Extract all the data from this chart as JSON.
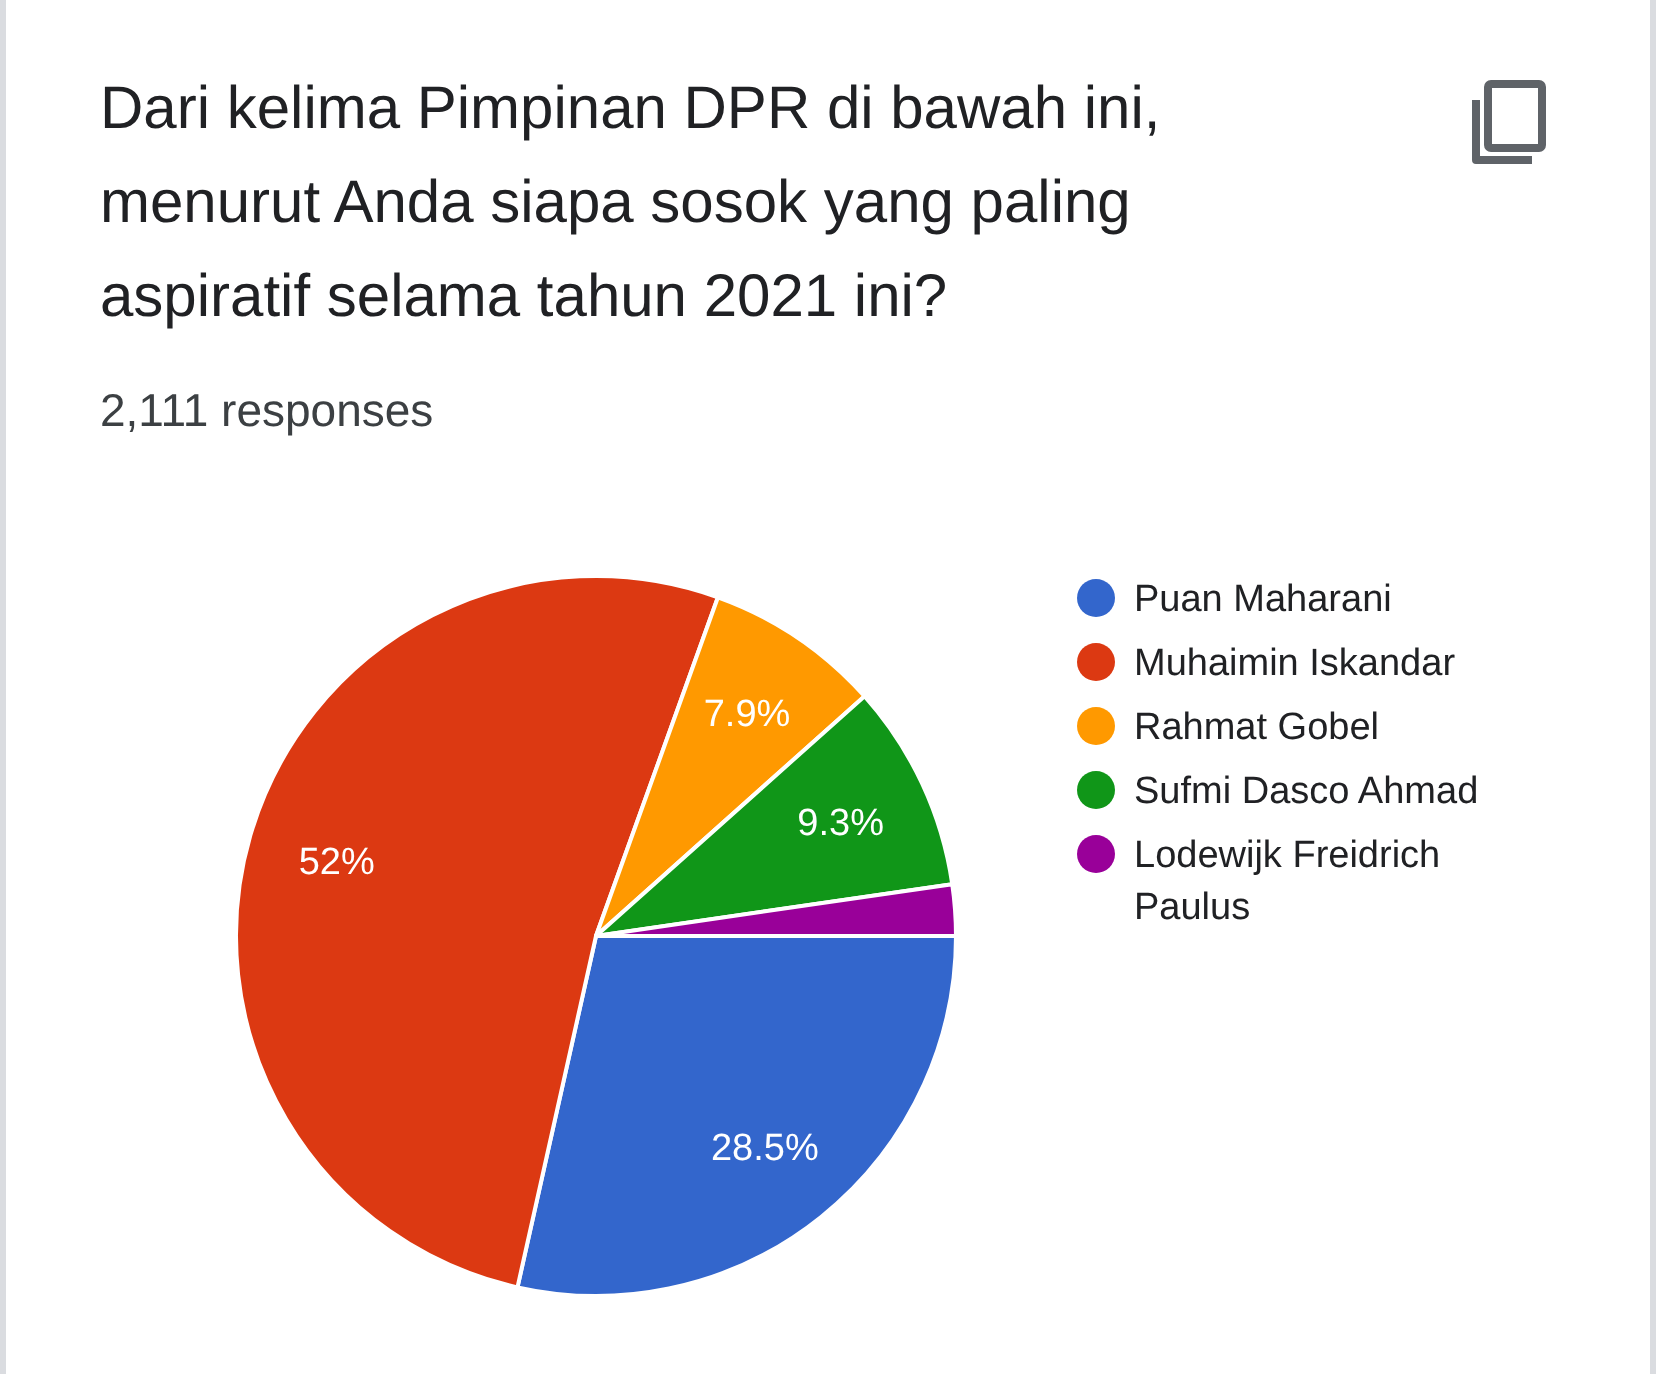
{
  "chart_data": {
    "type": "pie",
    "title": "Dari kelima Pimpinan DPR di bawah ini, menurut Anda siapa sosok yang paling aspiratif selama tahun 2021 ini?",
    "subtitle": "2,111 responses",
    "categories": [
      "Puan Maharani",
      "Muhaimin Iskandar",
      "Rahmat Gobel",
      "Sufmi Dasco Ahmad",
      "Lodewijk Freidrich Paulus"
    ],
    "values": [
      28.5,
      52,
      7.9,
      9.3,
      2.3
    ],
    "colors": [
      "#3366cc",
      "#dc3912",
      "#ff9900",
      "#109618",
      "#990099"
    ],
    "value_labels": [
      "28.5%",
      "52%",
      "7.9%",
      "9.3%",
      null
    ],
    "legend": "right"
  }
}
